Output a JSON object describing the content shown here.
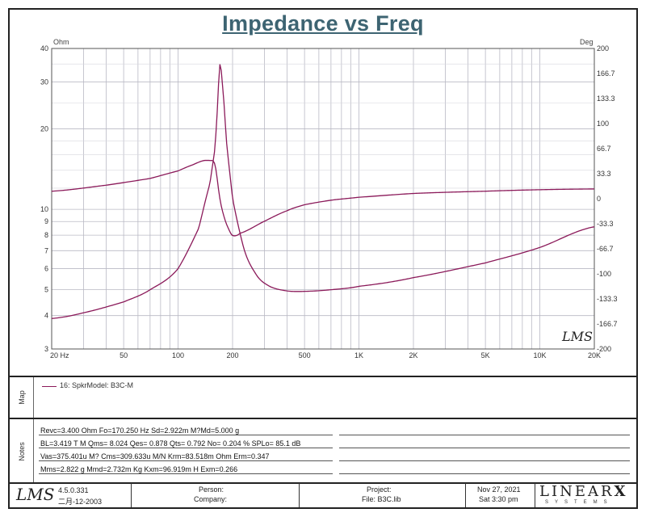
{
  "chart_data": {
    "type": "line",
    "title": "Impedance vs Freq",
    "x_scale": "log",
    "xlim": [
      20,
      20000
    ],
    "x_ticks": [
      {
        "value": 20,
        "label": "20  Hz"
      },
      {
        "value": 50,
        "label": "50"
      },
      {
        "value": 100,
        "label": "100"
      },
      {
        "value": 200,
        "label": "200"
      },
      {
        "value": 500,
        "label": "500"
      },
      {
        "value": 1000,
        "label": "1K"
      },
      {
        "value": 2000,
        "label": "2K"
      },
      {
        "value": 5000,
        "label": "5K"
      },
      {
        "value": 10000,
        "label": "10K"
      },
      {
        "value": 20000,
        "label": "20K"
      }
    ],
    "y_left": {
      "unit": "Ohm",
      "scale": "log",
      "lim": [
        3,
        40
      ],
      "ticks": [
        3,
        4,
        5,
        6,
        7,
        8,
        9,
        10,
        20,
        30,
        40
      ]
    },
    "y_right": {
      "unit": "Deg",
      "scale": "linear",
      "lim": [
        -200,
        200
      ],
      "ticks": [
        "200",
        "166.7",
        "133.3",
        "100",
        "66.7",
        "33.3",
        "0",
        "-33.3",
        "-66.7",
        "-100",
        "-133.3",
        "-166.7",
        "-200"
      ]
    },
    "grid": true,
    "series": [
      {
        "axis": "left",
        "color": "#8b1a5a",
        "points": [
          [
            20,
            3.9
          ],
          [
            30,
            4.1
          ],
          [
            50,
            4.5
          ],
          [
            70,
            5.0
          ],
          [
            100,
            6.0
          ],
          [
            130,
            8.5
          ],
          [
            150,
            12.5
          ],
          [
            160,
            17
          ],
          [
            165,
            24
          ],
          [
            170.25,
            34.9
          ],
          [
            175,
            30
          ],
          [
            185,
            18
          ],
          [
            200,
            11
          ],
          [
            230,
            7.2
          ],
          [
            270,
            5.7
          ],
          [
            320,
            5.15
          ],
          [
            400,
            4.95
          ],
          [
            500,
            4.93
          ],
          [
            700,
            5.0
          ],
          [
            1000,
            5.15
          ],
          [
            2000,
            5.55
          ],
          [
            5000,
            6.3
          ],
          [
            10000,
            7.2
          ],
          [
            20000,
            8.6
          ]
        ]
      },
      {
        "axis": "right",
        "color": "#8b1a5a",
        "points": [
          [
            20,
            10
          ],
          [
            40,
            18
          ],
          [
            70,
            27
          ],
          [
            100,
            37
          ],
          [
            120,
            45
          ],
          [
            140,
            51
          ],
          [
            150,
            51
          ],
          [
            160,
            45
          ],
          [
            170.25,
            0
          ],
          [
            180,
            -25
          ],
          [
            190,
            -40
          ],
          [
            200,
            -49
          ],
          [
            220,
            -46
          ],
          [
            300,
            -30
          ],
          [
            400,
            -16
          ],
          [
            500,
            -8
          ],
          [
            700,
            -2
          ],
          [
            1000,
            2
          ],
          [
            2000,
            7
          ],
          [
            5000,
            10
          ],
          [
            10000,
            12
          ],
          [
            20000,
            13
          ]
        ]
      }
    ],
    "watermark": "LMS"
  },
  "legend": {
    "label": "Map",
    "entry": "16: SpkrModel: B3C-M"
  },
  "notes": {
    "label": "Notes",
    "lines": [
      "Revc=3.400 Ohm  Fo=170.250 Hz  Sd=2.922m M?Md=5.000 g",
      "BL=3.419 T M  Qms= 8.024  Qes= 0.878  Qts= 0.792  No= 0.204 %  SPLo= 85.1 dB",
      "Vas=375.401u M? Cms=309.633u M/N  Krm=83.518m Ohm  Erm=0.347",
      "Mms=2.822 g  Mmd=2.732m Kg  Kxm=96.919m H  Exm=0.266"
    ]
  },
  "footer": {
    "logo": "LMS",
    "version": "4.5.0.331",
    "date_build": "二月-12-2003",
    "person_label": "Person:",
    "company_label": "Company:",
    "project_label": "Project:",
    "file_label": "File: B3C.lib",
    "date": "Nov 27, 2021",
    "time": "Sat  3:30 pm",
    "brand": "LINEAR",
    "brand_x": "X",
    "brand_sub": "SYSTEMS"
  }
}
